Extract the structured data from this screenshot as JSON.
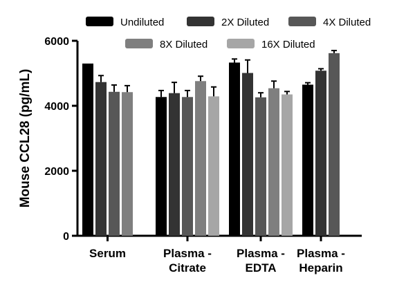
{
  "chart_data": {
    "type": "bar",
    "title": "",
    "xlabel": "",
    "ylabel": "Mouse CCL28 (pg/mL)",
    "ylim": [
      0,
      6000
    ],
    "yticks": [
      "0",
      "2000",
      "4000",
      "6000"
    ],
    "ytick_values": [
      0,
      2000,
      4000,
      6000
    ],
    "grid": false,
    "legend_position": "top",
    "categories": [
      [
        "Serum"
      ],
      [
        "Plasma -",
        "Citrate"
      ],
      [
        "Plasma -",
        "EDTA"
      ],
      [
        "Plasma -",
        "Heparin"
      ]
    ],
    "series": [
      {
        "name": "Undiluted",
        "color": "#000000",
        "values": [
          5300,
          4270,
          5330,
          4650
        ],
        "errors": [
          0,
          200,
          110,
          60
        ]
      },
      {
        "name": "2X Diluted",
        "color": "#333333",
        "values": [
          4730,
          4390,
          5010,
          5080
        ],
        "errors": [
          200,
          330,
          400,
          60
        ]
      },
      {
        "name": "4X Diluted",
        "color": "#575757",
        "values": [
          4430,
          4270,
          4260,
          5620
        ],
        "errors": [
          210,
          200,
          140,
          80
        ]
      },
      {
        "name": "8X Diluted",
        "color": "#7f7f7f",
        "values": [
          4420,
          4760,
          4540,
          null
        ],
        "errors": [
          200,
          150,
          220,
          null
        ]
      },
      {
        "name": "16X Diluted",
        "color": "#a6a6a6",
        "values": [
          null,
          4290,
          4350,
          null
        ],
        "errors": [
          null,
          290,
          90,
          null
        ]
      }
    ],
    "serum_extra": {
      "value": 4420,
      "error": 200
    }
  }
}
